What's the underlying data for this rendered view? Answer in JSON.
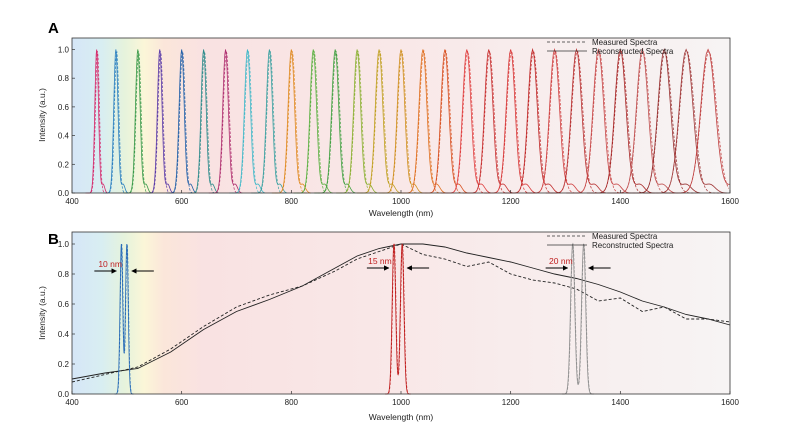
{
  "chart_data": [
    {
      "panel": "A",
      "type": "line",
      "xlabel": "Wavelength (nm)",
      "ylabel": "Intensity (a.u.)",
      "xlim": [
        400,
        1600
      ],
      "ylim": [
        0,
        1.08
      ],
      "x_ticks": [
        400,
        600,
        800,
        1000,
        1200,
        1400,
        1600
      ],
      "y_ticks": [
        0.0,
        0.2,
        0.4,
        0.6,
        0.8,
        1.0
      ],
      "legend": {
        "placement": "top-right",
        "entries": [
          {
            "label": "Measured Spectra",
            "style": "dashed"
          },
          {
            "label": "Reconstructed Spectra",
            "style": "solid"
          }
        ]
      },
      "peak_wavelengths": [
        445,
        480,
        520,
        560,
        600,
        640,
        680,
        720,
        760,
        800,
        840,
        880,
        920,
        960,
        1000,
        1040,
        1080,
        1120,
        1160,
        1200,
        1240,
        1280,
        1320,
        1360,
        1400,
        1440,
        1480,
        1520,
        1560
      ],
      "peak_colors": [
        "#d6286a",
        "#2a7fc0",
        "#3a9a4a",
        "#5a3aa8",
        "#1f5fa8",
        "#2a8a8a",
        "#b03070",
        "#3fb8c8",
        "#3aa0a0",
        "#e08a20",
        "#5ab040",
        "#40a040",
        "#8ab030",
        "#c0a020",
        "#d09020",
        "#e07020",
        "#d85020",
        "#e04040",
        "#c83030",
        "#d83838",
        "#c02828",
        "#d04040",
        "#b83030",
        "#c84848",
        "#a82828",
        "#c05050",
        "#983030",
        "#a03838",
        "#c04040"
      ],
      "peak_fwhm": [
        8,
        9,
        10,
        10,
        11,
        11,
        12,
        13,
        13,
        14,
        14,
        15,
        15,
        16,
        16,
        17,
        17,
        18,
        18,
        19,
        20,
        21,
        22,
        23,
        24,
        25,
        27,
        29,
        31
      ]
    },
    {
      "panel": "B",
      "type": "line",
      "xlabel": "Wavelength (nm)",
      "ylabel": "Intensity (a.u.)",
      "xlim": [
        400,
        1600
      ],
      "ylim": [
        0,
        1.08
      ],
      "x_ticks": [
        400,
        600,
        800,
        1000,
        1200,
        1400,
        1600
      ],
      "y_ticks": [
        0.0,
        0.2,
        0.4,
        0.6,
        0.8,
        1.0
      ],
      "legend": {
        "placement": "top-right",
        "entries": [
          {
            "label": "Measured Spectra",
            "style": "dashed"
          },
          {
            "label": "Reconstructed Spectra",
            "style": "solid"
          }
        ]
      },
      "broadband_measured": {
        "x": [
          400,
          460,
          520,
          580,
          640,
          700,
          760,
          820,
          880,
          920,
          960,
          1000,
          1040,
          1080,
          1120,
          1160,
          1200,
          1240,
          1280,
          1320,
          1360,
          1400,
          1440,
          1480,
          1520,
          1560,
          1600
        ],
        "y": [
          0.08,
          0.13,
          0.18,
          0.3,
          0.45,
          0.58,
          0.66,
          0.72,
          0.82,
          0.9,
          0.95,
          1.0,
          0.93,
          0.9,
          0.85,
          0.88,
          0.8,
          0.76,
          0.74,
          0.7,
          0.62,
          0.64,
          0.55,
          0.58,
          0.5,
          0.5,
          0.48
        ]
      },
      "broadband_reconstructed": {
        "x": [
          400,
          460,
          520,
          580,
          640,
          700,
          760,
          820,
          880,
          920,
          960,
          1000,
          1040,
          1080,
          1120,
          1160,
          1200,
          1240,
          1280,
          1320,
          1360,
          1400,
          1440,
          1480,
          1520,
          1560,
          1600
        ],
        "y": [
          0.1,
          0.14,
          0.17,
          0.28,
          0.43,
          0.55,
          0.63,
          0.72,
          0.84,
          0.92,
          0.97,
          1.0,
          1.0,
          0.98,
          0.94,
          0.91,
          0.88,
          0.84,
          0.8,
          0.77,
          0.73,
          0.68,
          0.62,
          0.58,
          0.53,
          0.5,
          0.46
        ]
      },
      "double_peaks": [
        {
          "label": "10 nm",
          "centers": [
            490,
            500
          ],
          "width": 2.5,
          "color": "#2a6db8",
          "label_color": "#c02020",
          "label_x": 448,
          "label_y": 0.82
        },
        {
          "label": "15 nm",
          "centers": [
            987,
            1002
          ],
          "width": 3.2,
          "color": "#c02020",
          "label_color": "#c02020",
          "label_x": 940,
          "label_y": 0.84
        },
        {
          "label": "20 nm",
          "centers": [
            1313,
            1333
          ],
          "width": 3.8,
          "color": "#909090",
          "label_color": "#c02020",
          "label_x": 1270,
          "label_y": 0.84
        }
      ]
    }
  ]
}
